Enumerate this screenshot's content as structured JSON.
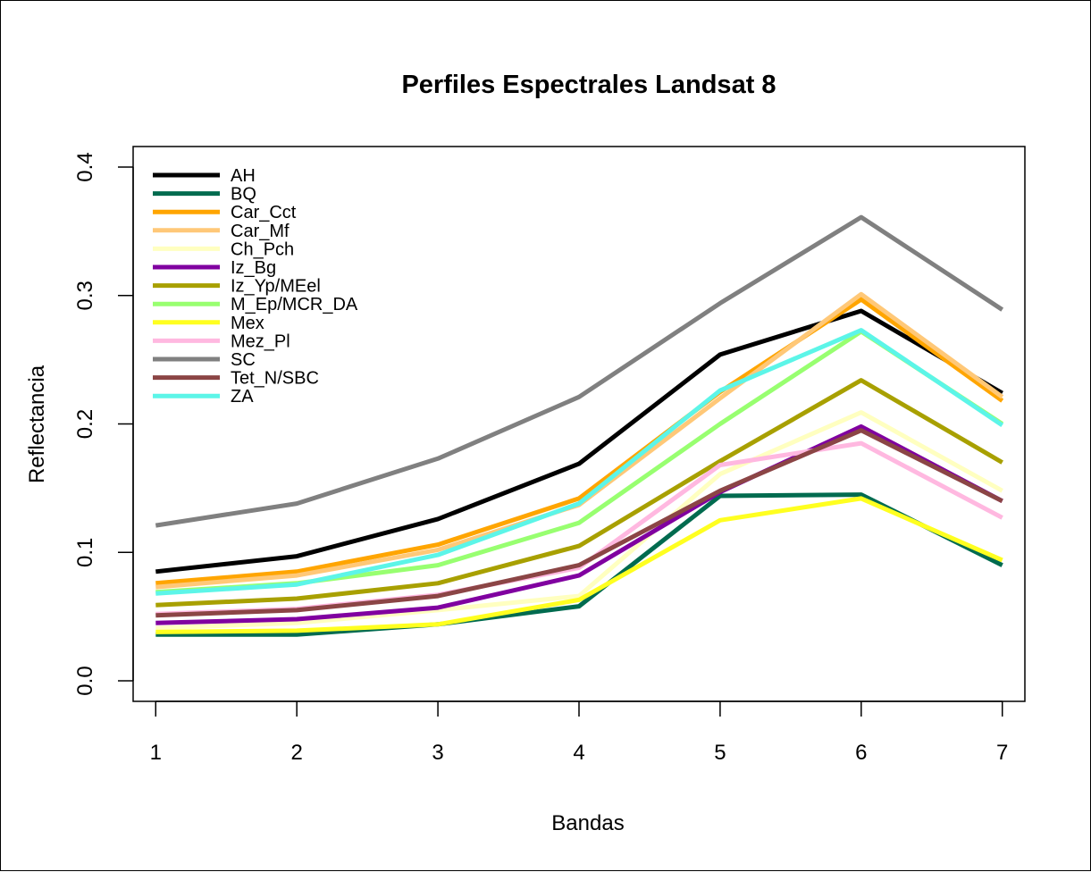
{
  "chart_data": {
    "type": "line",
    "title": "Perfiles Espectrales Landsat 8",
    "xlabel": "Bandas",
    "ylabel": "Reflectancia",
    "x": [
      1,
      2,
      3,
      4,
      5,
      6,
      7
    ],
    "x_tick_labels": [
      "1",
      "2",
      "3",
      "4",
      "5",
      "6",
      "7"
    ],
    "y_ticks": [
      0.0,
      0.1,
      0.2,
      0.3,
      0.4
    ],
    "y_tick_labels": [
      "0.0",
      "0.1",
      "0.2",
      "0.3",
      "0.4"
    ],
    "xlim": [
      0.84,
      7.16
    ],
    "ylim": [
      -0.016,
      0.416
    ],
    "grid": false,
    "legend_position": "top-left",
    "series": [
      {
        "name": "AH",
        "color": "#000000",
        "values": [
          0.085,
          0.097,
          0.126,
          0.169,
          0.254,
          0.288,
          0.224
        ]
      },
      {
        "name": "BQ",
        "color": "#006B4F",
        "values": [
          0.036,
          0.036,
          0.044,
          0.058,
          0.144,
          0.145,
          0.09
        ]
      },
      {
        "name": "Car_Cct",
        "color": "#FFA500",
        "values": [
          0.076,
          0.085,
          0.106,
          0.142,
          0.225,
          0.297,
          0.218
        ]
      },
      {
        "name": "Car_Mf",
        "color": "#FFC878",
        "values": [
          0.073,
          0.082,
          0.102,
          0.137,
          0.22,
          0.301,
          0.221
        ]
      },
      {
        "name": "Ch_Pch",
        "color": "#FFFFC0",
        "values": [
          0.041,
          0.045,
          0.055,
          0.066,
          0.161,
          0.209,
          0.148
        ]
      },
      {
        "name": "Iz_Bg",
        "color": "#8000A0",
        "values": [
          0.045,
          0.048,
          0.057,
          0.082,
          0.147,
          0.198,
          0.14
        ]
      },
      {
        "name": "Iz_Yp/MEel",
        "color": "#A8A000",
        "values": [
          0.059,
          0.064,
          0.076,
          0.105,
          0.171,
          0.234,
          0.17
        ]
      },
      {
        "name": "M_Ep/MCR_DA",
        "color": "#98FF70",
        "values": [
          0.069,
          0.076,
          0.09,
          0.123,
          0.2,
          0.272,
          0.2
        ]
      },
      {
        "name": "Mex",
        "color": "#FFFF20",
        "values": [
          0.038,
          0.039,
          0.044,
          0.063,
          0.125,
          0.142,
          0.094
        ]
      },
      {
        "name": "Mez_Pl",
        "color": "#FFB8E0",
        "values": [
          0.052,
          0.056,
          0.067,
          0.088,
          0.168,
          0.185,
          0.127
        ]
      },
      {
        "name": "SC",
        "color": "#808080",
        "values": [
          0.121,
          0.138,
          0.173,
          0.221,
          0.294,
          0.361,
          0.289
        ]
      },
      {
        "name": "Tet_N/SBC",
        "color": "#8B4545",
        "values": [
          0.051,
          0.055,
          0.066,
          0.09,
          0.148,
          0.195,
          0.14
        ]
      },
      {
        "name": "ZA",
        "color": "#5CF5E8",
        "values": [
          0.068,
          0.075,
          0.098,
          0.138,
          0.226,
          0.273,
          0.199
        ]
      }
    ]
  }
}
